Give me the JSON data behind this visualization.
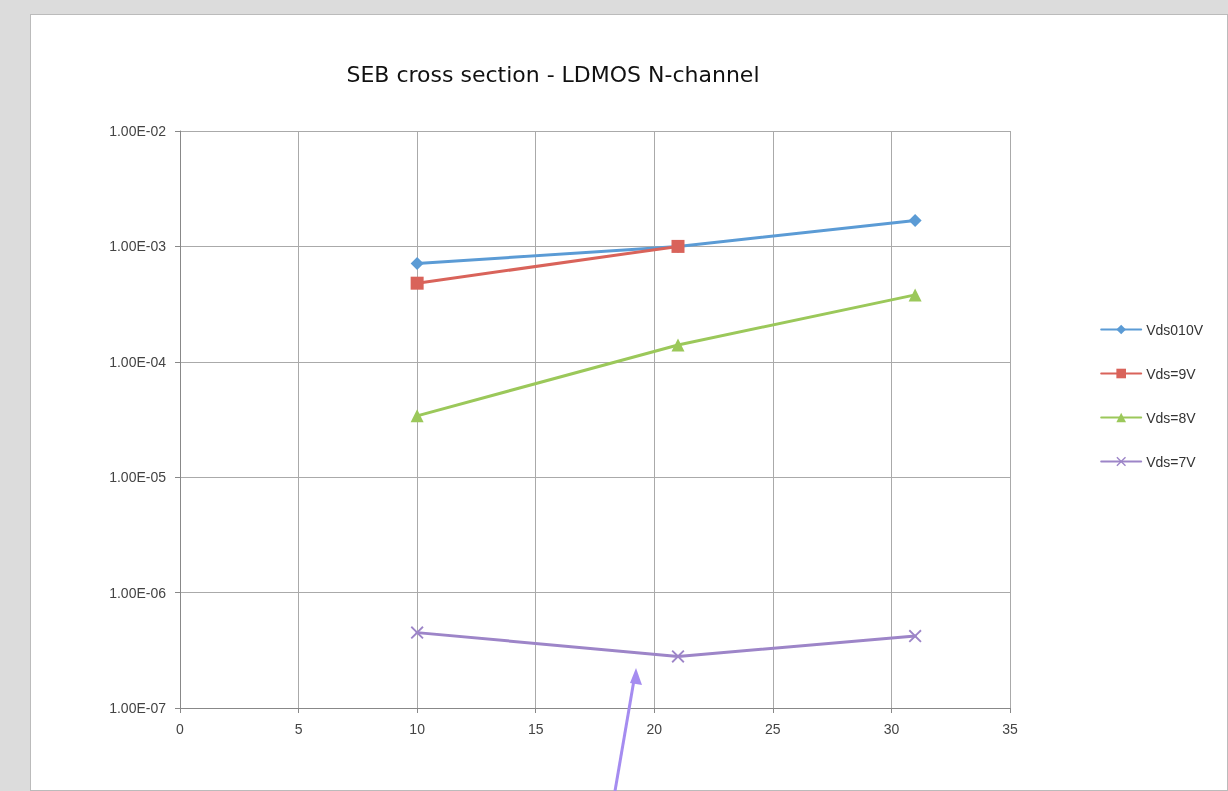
{
  "chart_data": {
    "type": "line",
    "title": "SEB cross section - LDMOS N-channel",
    "x": [
      10,
      21,
      31
    ],
    "series": [
      {
        "name": "Vds010V",
        "color": "#5b9bd5",
        "marker": "diamond",
        "values": [
          0.00071,
          0.001,
          0.00168
        ]
      },
      {
        "name": "Vds=9V",
        "color": "#d9635a",
        "marker": "square",
        "values": [
          0.00048,
          0.001,
          null
        ]
      },
      {
        "name": "Vds=8V",
        "color": "#9bc85a",
        "marker": "triangle",
        "values": [
          3.4e-05,
          0.00014,
          0.00038
        ]
      },
      {
        "name": "Vds=7V",
        "color": "#9d85c8",
        "marker": "cross",
        "values": [
          4.5e-07,
          2.8e-07,
          4.2e-07
        ]
      }
    ],
    "xlim": [
      0,
      35
    ],
    "xticks": [
      0,
      5,
      10,
      15,
      20,
      25,
      30,
      35
    ],
    "ylim": [
      1e-07,
      0.01
    ],
    "yticks": [
      {
        "value": 1e-07,
        "label": "1.00E-07"
      },
      {
        "value": 1e-06,
        "label": "1.00E-06"
      },
      {
        "value": 1e-05,
        "label": "1.00E-05"
      },
      {
        "value": 0.0001,
        "label": "1.00E-04"
      },
      {
        "value": 0.001,
        "label": "1.00E-03"
      },
      {
        "value": 0.01,
        "label": "1.00E-02"
      }
    ],
    "log": "y",
    "grid": true,
    "legend": "right",
    "line_style": "solid"
  }
}
